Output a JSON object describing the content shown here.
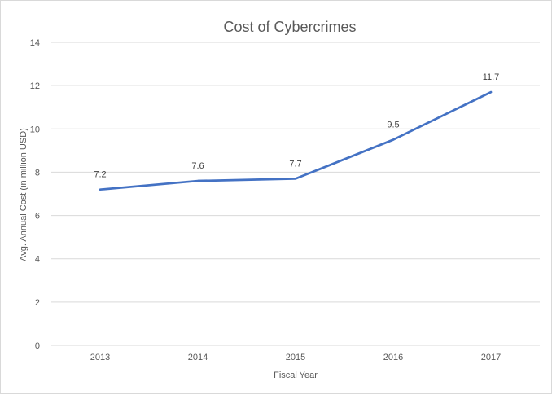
{
  "chart_data": {
    "type": "line",
    "title": "Cost of Cybercrimes",
    "xlabel": "Fiscal Year",
    "ylabel": "Avg. Annual Cost (in million USD)",
    "categories": [
      "2013",
      "2014",
      "2015",
      "2016",
      "2017"
    ],
    "series": [
      {
        "values": [
          7.2,
          7.6,
          7.7,
          9.5,
          11.7
        ],
        "color": "#4472c4"
      }
    ],
    "data_labels": [
      "7.2",
      "7.6",
      "7.7",
      "9.5",
      "11.7"
    ],
    "ylim": [
      0,
      14
    ],
    "yticks": [
      "0",
      "2",
      "4",
      "6",
      "8",
      "10",
      "12",
      "14"
    ],
    "grid": true,
    "legend": "none"
  }
}
